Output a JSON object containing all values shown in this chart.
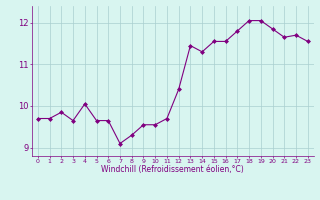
{
  "x": [
    0,
    1,
    2,
    3,
    4,
    5,
    6,
    7,
    8,
    9,
    10,
    11,
    12,
    13,
    14,
    15,
    16,
    17,
    18,
    19,
    20,
    21,
    22,
    23
  ],
  "y": [
    9.7,
    9.7,
    9.85,
    9.65,
    10.05,
    9.65,
    9.65,
    9.1,
    9.3,
    9.55,
    9.55,
    9.7,
    10.4,
    11.45,
    11.3,
    11.55,
    11.55,
    11.8,
    12.05,
    12.05,
    11.85,
    11.65,
    11.7,
    11.55
  ],
  "line_color": "#800080",
  "marker": "D",
  "marker_size": 2.0,
  "bg_color": "#d8f5f0",
  "grid_color": "#aacfcf",
  "xlabel": "Windchill (Refroidissement éolien,°C)",
  "tick_color": "#800080",
  "ylim": [
    8.8,
    12.4
  ],
  "xlim": [
    -0.5,
    23.5
  ],
  "yticks": [
    9,
    10,
    11,
    12
  ],
  "xticks": [
    0,
    1,
    2,
    3,
    4,
    5,
    6,
    7,
    8,
    9,
    10,
    11,
    12,
    13,
    14,
    15,
    16,
    17,
    18,
    19,
    20,
    21,
    22,
    23
  ],
  "figsize": [
    3.2,
    2.0
  ],
  "dpi": 100
}
